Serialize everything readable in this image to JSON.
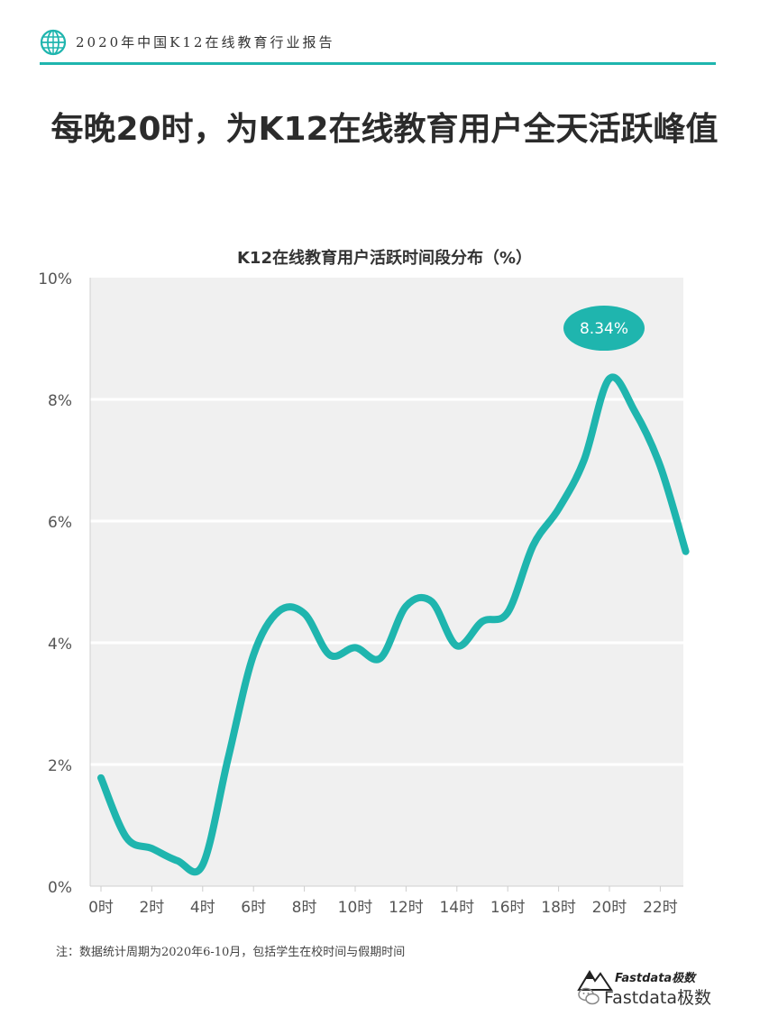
{
  "header": {
    "report_title": "2020年中国K12在线教育行业报告",
    "icon": "globe-icon",
    "accent_color": "#1fb5ae"
  },
  "headline": "每晚20时，为K12在线教育用户全天活跃峰值",
  "footnote": "注：数据统计周期为2020年6-10月，包括学生在校时间与假期时间",
  "brand": {
    "small_text": "Fastdata极数",
    "wechat_text": "Fastdata极数",
    "icon": "wechat-icon"
  },
  "chart_data": {
    "type": "line",
    "title": "K12在线教育用户活跃时间段分布（%）",
    "xlabel": "",
    "ylabel": "",
    "x": [
      0,
      1,
      2,
      3,
      4,
      5,
      6,
      7,
      8,
      9,
      10,
      11,
      12,
      13,
      14,
      15,
      16,
      17,
      18,
      19,
      20,
      21,
      22,
      23
    ],
    "x_tick_labels": [
      "0时",
      "2时",
      "4时",
      "6时",
      "8时",
      "10时",
      "12时",
      "14时",
      "16时",
      "18时",
      "20时",
      "22时"
    ],
    "x_tick_values": [
      0,
      2,
      4,
      6,
      8,
      10,
      12,
      14,
      16,
      18,
      20,
      22
    ],
    "y_tick_labels": [
      "0%",
      "2%",
      "4%",
      "6%",
      "8%",
      "10%"
    ],
    "y_tick_values": [
      0,
      2,
      4,
      6,
      8,
      10
    ],
    "ylim": [
      0,
      10
    ],
    "grid": true,
    "series": [
      {
        "values": [
          1.78,
          0.8,
          0.62,
          0.42,
          0.35,
          2.1,
          3.8,
          4.52,
          4.48,
          3.8,
          3.92,
          3.75,
          4.6,
          4.68,
          3.95,
          4.35,
          4.5,
          5.6,
          6.2,
          7.0,
          8.34,
          7.8,
          6.9,
          5.5
        ]
      }
    ],
    "annotation": {
      "label": "8.34%",
      "x": 20,
      "y": 8.34
    },
    "line_color": "#1fb5ae",
    "plot_bg": "#f0f0f0"
  }
}
